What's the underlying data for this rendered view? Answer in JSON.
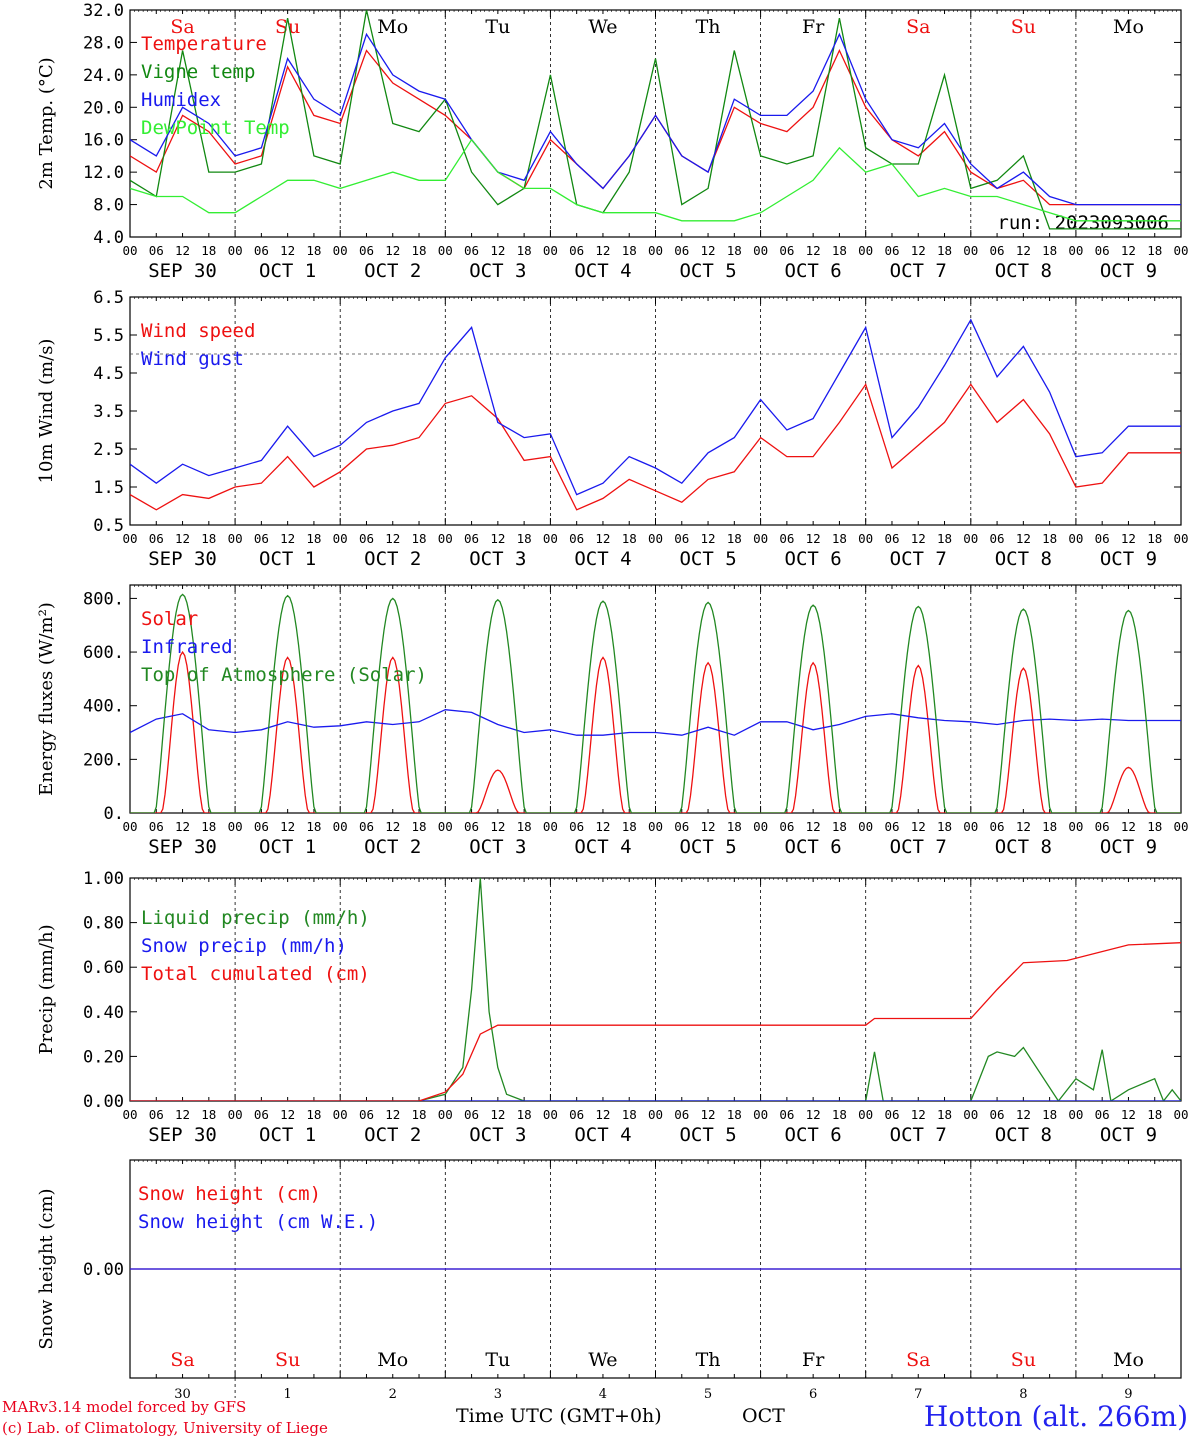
{
  "footer": {
    "model": "MARv3.14 model forced by GFS",
    "lab": "(c) Lab. of Climatology, University of Liege",
    "time_axis": "Time UTC (GMT+0h)",
    "month": "OCT",
    "station": "Hotton (alt. 266m)"
  },
  "run_label": "run: 2023093006",
  "time_axis": {
    "hour_ticks": [
      "00",
      "06",
      "12",
      "18"
    ],
    "last_tick": "00",
    "day_labels": [
      "SEP 30",
      "OCT  1",
      "OCT  2",
      "OCT  3",
      "OCT  4",
      "OCT  5",
      "OCT  6",
      "OCT  7",
      "OCT  8",
      "OCT  9"
    ],
    "weekdays": [
      {
        "label": "Sa",
        "color": "#ee1111"
      },
      {
        "label": "Su",
        "color": "#ee1111"
      },
      {
        "label": "Mo",
        "color": "#000000"
      },
      {
        "label": "Tu",
        "color": "#000000"
      },
      {
        "label": "We",
        "color": "#000000"
      },
      {
        "label": "Th",
        "color": "#000000"
      },
      {
        "label": "Fr",
        "color": "#000000"
      },
      {
        "label": "Sa",
        "color": "#ee1111"
      },
      {
        "label": "Su",
        "color": "#ee1111"
      },
      {
        "label": "Mo",
        "color": "#000000"
      }
    ],
    "day_numbers": [
      "30",
      "1",
      "2",
      "3",
      "4",
      "5",
      "6",
      "7",
      "8",
      "9"
    ]
  },
  "chart_data": [
    {
      "type": "line",
      "ylabel": "2m Temp. (°C)",
      "ylim": [
        4,
        32
      ],
      "yticks": [
        "4.0",
        "8.0",
        "12.0",
        "16.0",
        "20.0",
        "24.0",
        "28.0",
        "32.0"
      ],
      "x_unit": "hours since SEP 30 00 UTC",
      "show_weekdays": true,
      "series": [
        {
          "name": "Temperature",
          "color": "#ee1111",
          "x": [
            0,
            6,
            12,
            18,
            24,
            30,
            36,
            42,
            48,
            54,
            60,
            66,
            72,
            78,
            84,
            90,
            96,
            102,
            108,
            114,
            120,
            126,
            132,
            138,
            144,
            150,
            156,
            162,
            168,
            174,
            180,
            186,
            192,
            198,
            204,
            210,
            216,
            222,
            228,
            234,
            240
          ],
          "values": [
            14,
            12,
            19,
            17,
            13,
            14,
            25,
            19,
            18,
            27,
            23,
            21,
            19,
            16,
            12,
            10,
            16,
            13,
            10,
            14,
            19,
            14,
            12,
            20,
            18,
            17,
            20,
            27,
            20,
            16,
            14,
            17,
            12,
            10,
            11,
            8,
            8,
            8,
            8,
            8,
            8
          ]
        },
        {
          "name": "Vigne temp",
          "color": "#118811",
          "x": [
            0,
            6,
            12,
            18,
            24,
            30,
            36,
            42,
            48,
            54,
            60,
            66,
            72,
            78,
            84,
            90,
            96,
            102,
            108,
            114,
            120,
            126,
            132,
            138,
            144,
            150,
            156,
            162,
            168,
            174,
            180,
            186,
            192,
            198,
            204,
            210,
            216,
            222,
            228,
            234,
            240
          ],
          "values": [
            11,
            9,
            27,
            12,
            12,
            13,
            31,
            14,
            13,
            32,
            18,
            17,
            21,
            12,
            8,
            10,
            24,
            8,
            7,
            12,
            26,
            8,
            10,
            27,
            14,
            13,
            14,
            31,
            15,
            13,
            13,
            24,
            10,
            11,
            14,
            5,
            5,
            5,
            5,
            5,
            5
          ]
        },
        {
          "name": "Humidex",
          "color": "#1a1aee",
          "x": [
            0,
            6,
            12,
            18,
            24,
            30,
            36,
            42,
            48,
            54,
            60,
            66,
            72,
            78,
            84,
            90,
            96,
            102,
            108,
            114,
            120,
            126,
            132,
            138,
            144,
            150,
            156,
            162,
            168,
            174,
            180,
            186,
            192,
            198,
            204,
            210,
            216,
            222,
            228,
            234,
            240
          ],
          "values": [
            16,
            14,
            20,
            18,
            14,
            15,
            26,
            21,
            19,
            29,
            24,
            22,
            21,
            16,
            12,
            11,
            17,
            13,
            10,
            14,
            19,
            14,
            12,
            21,
            19,
            19,
            22,
            29,
            21,
            16,
            15,
            18,
            13,
            10,
            12,
            9,
            8,
            8,
            8,
            8,
            8
          ]
        },
        {
          "name": "DewPoint Temp",
          "color": "#33ee33",
          "x": [
            0,
            6,
            12,
            18,
            24,
            30,
            36,
            42,
            48,
            54,
            60,
            66,
            72,
            78,
            84,
            90,
            96,
            102,
            108,
            114,
            120,
            126,
            132,
            138,
            144,
            150,
            156,
            162,
            168,
            174,
            180,
            186,
            192,
            198,
            204,
            210,
            216,
            222,
            228,
            234,
            240
          ],
          "values": [
            10,
            9,
            9,
            7,
            7,
            9,
            11,
            11,
            10,
            11,
            12,
            11,
            11,
            16,
            12,
            10,
            10,
            8,
            7,
            7,
            7,
            6,
            6,
            6,
            7,
            9,
            11,
            15,
            12,
            13,
            9,
            10,
            9,
            9,
            8,
            7,
            6,
            6,
            6,
            6,
            6
          ]
        }
      ]
    },
    {
      "type": "line",
      "ylabel": "10m Wind (m/s)",
      "ylim": [
        0.5,
        6.5
      ],
      "yticks": [
        "0.5",
        "1.5",
        "2.5",
        "3.5",
        "4.5",
        "5.5",
        "6.5"
      ],
      "ref_line": 5,
      "x_unit": "hours since SEP 30 00 UTC",
      "series": [
        {
          "name": "Wind speed",
          "color": "#ee1111",
          "x": [
            0,
            6,
            12,
            18,
            24,
            30,
            36,
            42,
            48,
            54,
            60,
            66,
            72,
            78,
            84,
            90,
            96,
            102,
            108,
            114,
            120,
            126,
            132,
            138,
            144,
            150,
            156,
            162,
            168,
            174,
            180,
            186,
            192,
            198,
            204,
            210,
            216,
            222,
            228,
            234,
            240
          ],
          "values": [
            1.3,
            0.9,
            1.3,
            1.2,
            1.5,
            1.6,
            2.3,
            1.5,
            1.9,
            2.5,
            2.6,
            2.8,
            3.7,
            3.9,
            3.3,
            2.2,
            2.3,
            0.9,
            1.2,
            1.7,
            1.4,
            1.1,
            1.7,
            1.9,
            2.8,
            2.3,
            2.3,
            3.2,
            4.2,
            2.0,
            2.6,
            3.2,
            4.2,
            3.2,
            3.8,
            2.9,
            1.5,
            1.6,
            2.4,
            2.4,
            2.4
          ]
        },
        {
          "name": "Wind gust",
          "color": "#1a1aee",
          "x": [
            0,
            6,
            12,
            18,
            24,
            30,
            36,
            42,
            48,
            54,
            60,
            66,
            72,
            78,
            84,
            90,
            96,
            102,
            108,
            114,
            120,
            126,
            132,
            138,
            144,
            150,
            156,
            162,
            168,
            174,
            180,
            186,
            192,
            198,
            204,
            210,
            216,
            222,
            228,
            234,
            240
          ],
          "values": [
            2.1,
            1.6,
            2.1,
            1.8,
            2.0,
            2.2,
            3.1,
            2.3,
            2.6,
            3.2,
            3.5,
            3.7,
            4.9,
            5.7,
            3.2,
            2.8,
            2.9,
            1.3,
            1.6,
            2.3,
            2.0,
            1.6,
            2.4,
            2.8,
            3.8,
            3.0,
            3.3,
            4.5,
            5.7,
            2.8,
            3.6,
            4.7,
            5.9,
            4.4,
            5.2,
            4.0,
            2.3,
            2.4,
            3.1,
            3.1,
            3.1
          ]
        }
      ]
    },
    {
      "type": "line",
      "ylabel": "Energy fluxes (W/m²)",
      "ylim": [
        0,
        850
      ],
      "yticks": [
        "0.",
        "200.",
        "400.",
        "600.",
        "800."
      ],
      "x_unit": "hours since SEP 30 00 UTC",
      "series": [
        {
          "name": "Solar",
          "color": "#ee1111",
          "day_peaks": [
            600,
            580,
            580,
            160,
            580,
            560,
            560,
            550,
            540,
            170
          ]
        },
        {
          "name": "Infrared",
          "color": "#1a1aee",
          "x": [
            0,
            6,
            12,
            18,
            24,
            30,
            36,
            42,
            48,
            54,
            60,
            66,
            72,
            78,
            84,
            90,
            96,
            102,
            108,
            114,
            120,
            126,
            132,
            138,
            144,
            150,
            156,
            162,
            168,
            174,
            180,
            186,
            192,
            198,
            204,
            210,
            216,
            222,
            228,
            234,
            240
          ],
          "values": [
            300,
            350,
            370,
            310,
            300,
            310,
            340,
            320,
            325,
            340,
            330,
            340,
            385,
            375,
            330,
            300,
            310,
            290,
            290,
            300,
            300,
            290,
            320,
            290,
            340,
            340,
            310,
            330,
            360,
            370,
            355,
            345,
            340,
            330,
            345,
            350,
            345,
            350,
            345,
            345,
            345
          ]
        },
        {
          "name": "Top of Atmosphere (Solar)",
          "color": "#228822",
          "day_peaks": [
            815,
            810,
            800,
            795,
            790,
            785,
            775,
            770,
            760,
            755
          ]
        }
      ]
    },
    {
      "type": "line",
      "ylabel": "Precip (mm/h)",
      "ylim": [
        0,
        1.0
      ],
      "yticks": [
        "0.00",
        "0.20",
        "0.40",
        "0.60",
        "0.80",
        "1.00"
      ],
      "x_unit": "hours since SEP 30 00 UTC",
      "series": [
        {
          "name": "Liquid precip (mm/h)",
          "color": "#228822",
          "x": [
            0,
            66,
            72,
            76,
            78,
            80,
            82,
            84,
            86,
            90,
            120,
            168,
            170,
            172,
            174,
            180,
            192,
            196,
            198,
            202,
            204,
            212,
            216,
            220,
            222,
            224,
            228,
            234,
            236,
            238,
            240
          ],
          "values": [
            0,
            0,
            0.03,
            0.15,
            0.5,
            1.0,
            0.4,
            0.15,
            0.03,
            0,
            0,
            0,
            0.22,
            0,
            0,
            0,
            0,
            0.2,
            0.22,
            0.2,
            0.24,
            0,
            0.1,
            0.05,
            0.23,
            0,
            0.05,
            0.1,
            0,
            0.05,
            0
          ]
        },
        {
          "name": "Snow precip (mm/h)",
          "color": "#1a1aee",
          "x": [
            0,
            240
          ],
          "values": [
            0,
            0
          ]
        },
        {
          "name": "Total cumulated (cm)",
          "color": "#ee1111",
          "x": [
            0,
            66,
            72,
            76,
            80,
            84,
            90,
            120,
            168,
            170,
            172,
            192,
            198,
            204,
            214,
            228,
            240
          ],
          "values": [
            0,
            0,
            0.04,
            0.12,
            0.3,
            0.34,
            0.34,
            0.34,
            0.34,
            0.37,
            0.37,
            0.37,
            0.5,
            0.62,
            0.63,
            0.7,
            0.71
          ]
        }
      ]
    },
    {
      "type": "line",
      "ylabel": "Snow height (cm)",
      "ylim": [
        -1,
        1
      ],
      "yticks": [
        "0.00"
      ],
      "x_unit": "hours since SEP 30 00 UTC",
      "show_weekdays_bottom": true,
      "series": [
        {
          "name": "Snow height (cm)",
          "color": "#ee1111",
          "x": [
            0,
            240
          ],
          "values": [
            0,
            0
          ]
        },
        {
          "name": "Snow height (cm W.E.)",
          "color": "#1a1aee",
          "x": [
            0,
            240
          ],
          "values": [
            0,
            0
          ]
        }
      ]
    }
  ]
}
